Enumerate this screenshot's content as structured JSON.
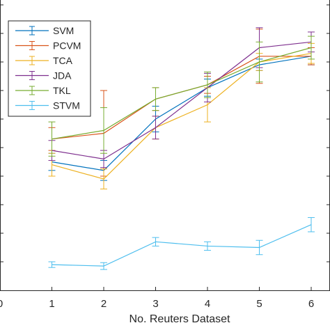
{
  "chart_data": {
    "type": "line",
    "xlabel": "No. Reuters Dataset",
    "ylabel": "",
    "x": [
      1,
      2,
      3,
      4,
      5,
      6
    ],
    "x_tick_labels": [
      "0",
      "1",
      "2",
      "3",
      "4",
      "5",
      "6"
    ],
    "xlim": [
      0,
      6.4
    ],
    "ylim": [
      0,
      10
    ],
    "legend_position": "top-left",
    "series": [
      {
        "name": "SVM",
        "color": "#0072BD",
        "values": [
          4.5,
          4.2,
          6.0,
          7.1,
          7.9,
          8.2
        ],
        "errors": [
          0.3,
          0.35,
          0.45,
          0.3,
          0.2,
          0.3
        ]
      },
      {
        "name": "PCVM",
        "color": "#D95319",
        "values": [
          5.3,
          5.5,
          6.7,
          7.2,
          8.2,
          8.2
        ],
        "errors": [
          0.4,
          1.5,
          0.4,
          0.3,
          0.95,
          0.3
        ]
      },
      {
        "name": "TCA",
        "color": "#EDB120",
        "values": [
          4.4,
          3.9,
          5.7,
          6.5,
          8.0,
          8.3
        ],
        "errors": [
          0.4,
          0.35,
          0.4,
          0.6,
          0.3,
          0.35
        ]
      },
      {
        "name": "JDA",
        "color": "#7E2F8E",
        "values": [
          4.9,
          4.6,
          5.7,
          7.1,
          8.5,
          8.7
        ],
        "errors": [
          0.35,
          0.3,
          0.4,
          0.5,
          0.7,
          0.35
        ]
      },
      {
        "name": "TKL",
        "color": "#77AC30",
        "values": [
          5.3,
          5.6,
          6.7,
          7.2,
          8.0,
          8.5
        ],
        "errors": [
          0.6,
          0.8,
          0.4,
          0.45,
          0.7,
          0.4
        ]
      },
      {
        "name": "STVM",
        "color": "#4DBEEE",
        "values": [
          0.9,
          0.85,
          1.7,
          1.55,
          1.5,
          2.3
        ],
        "errors": [
          0.1,
          0.12,
          0.15,
          0.15,
          0.25,
          0.25
        ]
      }
    ]
  }
}
